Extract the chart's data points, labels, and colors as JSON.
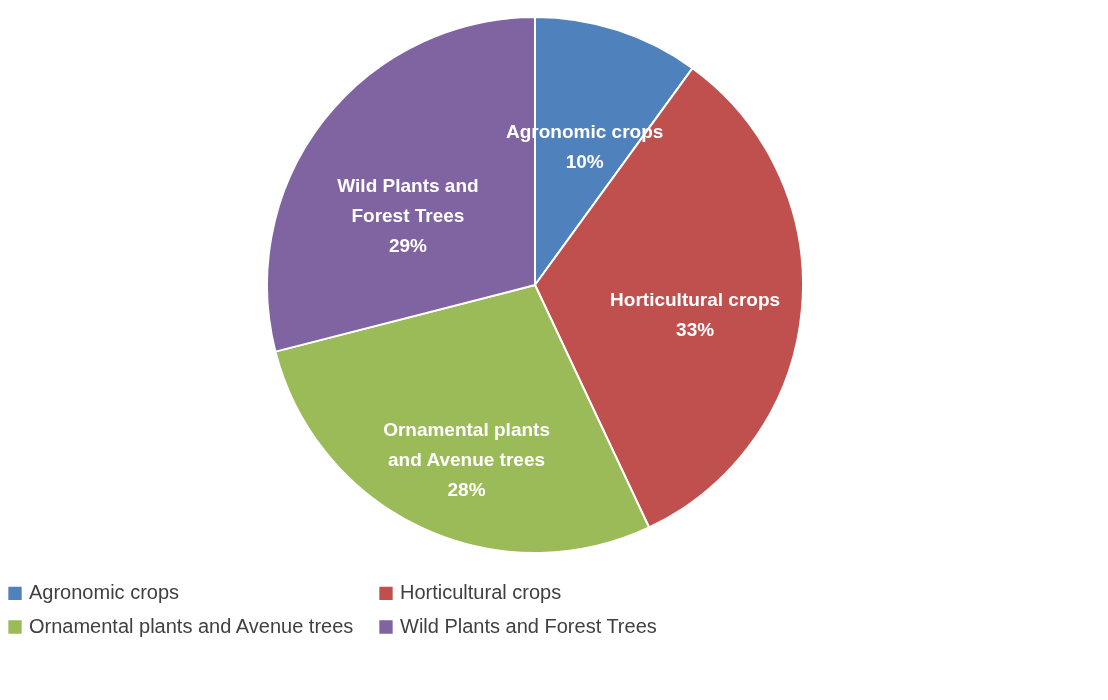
{
  "chart_data": {
    "type": "pie",
    "categories": [
      "Agronomic crops",
      "Horticultural crops",
      "Ornamental plants and Avenue trees",
      "Wild Plants and Forest Trees"
    ],
    "values": [
      10,
      33,
      28,
      29
    ],
    "colors": [
      "#4f81bd",
      "#c0504d",
      "#9bbb59",
      "#8064a2"
    ],
    "value_labels": [
      "10%",
      "33%",
      "28%",
      "29%"
    ],
    "legend": "bottom"
  }
}
